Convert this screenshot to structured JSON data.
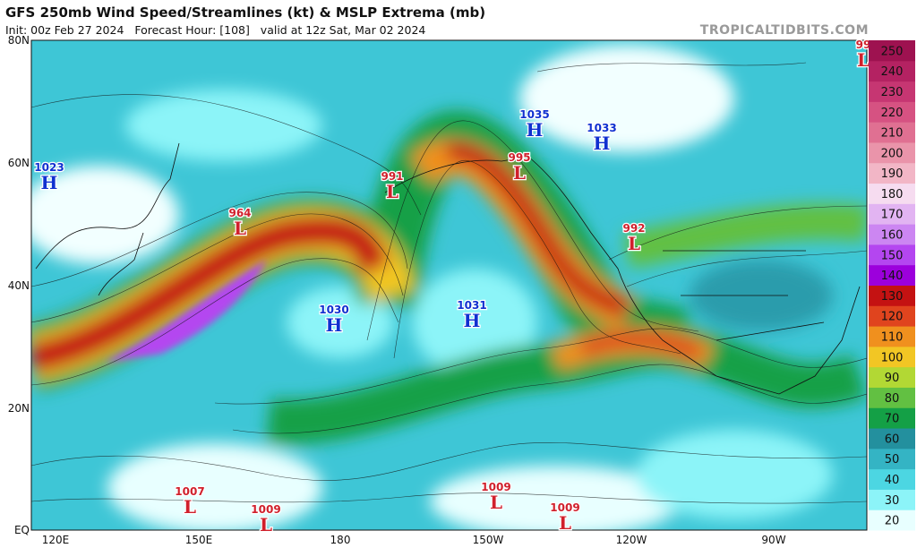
{
  "header": {
    "title": "GFS 250mb Wind Speed/Streamlines (kt) & MSLP Extrema (mb)",
    "subtitle": "Init: 00z Feb 27 2024   Forecast Hour: [108]   valid at 12z Sat, Mar 02 2024",
    "watermark": "TROPICALTIDBITS.COM"
  },
  "map": {
    "lat_labels": [
      "80N",
      "60N",
      "40N",
      "20N",
      "EQ"
    ],
    "lon_labels": [
      "120E",
      "150E",
      "180",
      "150W",
      "120W",
      "90W"
    ],
    "pressure_centers": [
      {
        "kind": "H",
        "value": 1023
      },
      {
        "kind": "L",
        "value": 964
      },
      {
        "kind": "L",
        "value": 991
      },
      {
        "kind": "L",
        "value": 995
      },
      {
        "kind": "H",
        "value": 1035
      },
      {
        "kind": "H",
        "value": 1033
      },
      {
        "kind": "L",
        "value": 992
      },
      {
        "kind": "H",
        "value": 1030
      },
      {
        "kind": "H",
        "value": 1031
      },
      {
        "kind": "L",
        "value": 1007
      },
      {
        "kind": "L",
        "value": 1009
      },
      {
        "kind": "L",
        "value": 1009
      },
      {
        "kind": "L",
        "value": 1009
      },
      {
        "kind": "L",
        "value": 99
      }
    ]
  },
  "colorbar": {
    "levels": [
      20,
      30,
      40,
      50,
      60,
      70,
      80,
      90,
      100,
      110,
      120,
      130,
      140,
      150,
      160,
      170,
      180,
      190,
      200,
      210,
      220,
      230,
      240,
      250
    ],
    "colors": [
      "#e8ffff",
      "#8cf4f8",
      "#4cd6e2",
      "#34b4c4",
      "#23909e",
      "#14a046",
      "#62c042",
      "#b2d834",
      "#f2c624",
      "#f0901e",
      "#e0441e",
      "#c41212",
      "#9c00dc",
      "#b446f0",
      "#cc86f2",
      "#e2b4f2",
      "#f6dcf0",
      "#f2b6c6",
      "#ea94aa",
      "#e07092",
      "#d65282",
      "#c63672",
      "#b42262",
      "#9e1250"
    ]
  }
}
